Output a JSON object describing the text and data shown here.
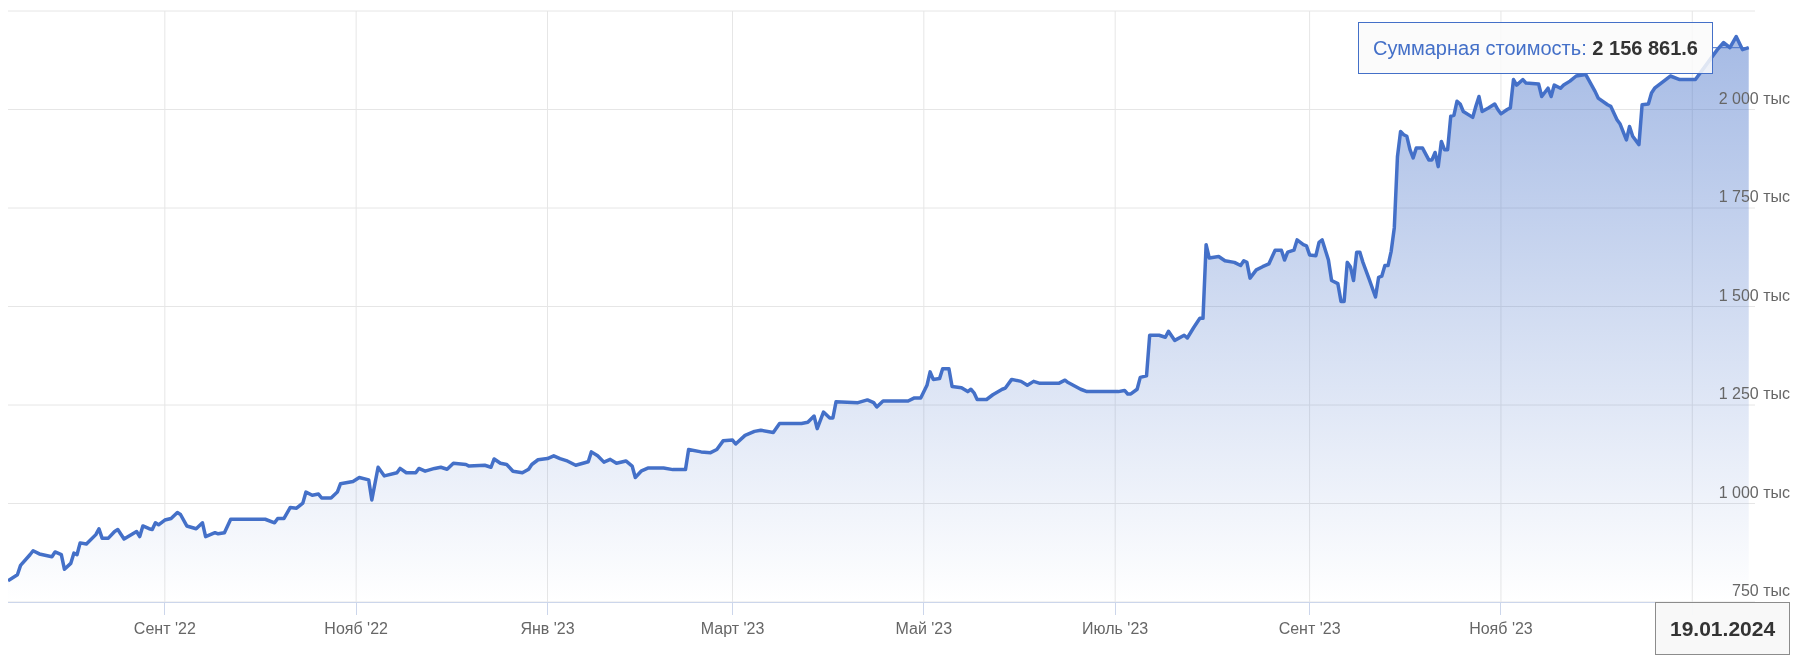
{
  "chart_data": {
    "type": "area",
    "x": [
      "2022-07-13",
      "2022-07-16",
      "2022-07-17",
      "2022-07-20",
      "2022-07-21",
      "2022-07-23",
      "2022-07-27",
      "2022-07-28",
      "2022-07-30",
      "2022-07-31",
      "2022-08-02",
      "2022-08-03",
      "2022-08-04",
      "2022-08-05",
      "2022-08-07",
      "2022-08-10",
      "2022-08-11",
      "2022-08-12",
      "2022-08-14",
      "2022-08-16",
      "2022-08-17",
      "2022-08-19",
      "2022-08-23",
      "2022-08-24",
      "2022-08-25",
      "2022-08-27",
      "2022-08-28",
      "2022-08-29",
      "2022-08-30",
      "2022-09-01",
      "2022-09-03",
      "2022-09-05",
      "2022-09-06",
      "2022-09-08",
      "2022-09-11",
      "2022-09-13",
      "2022-09-14",
      "2022-09-17",
      "2022-09-18",
      "2022-09-20",
      "2022-09-22",
      "2022-10-03",
      "2022-10-06",
      "2022-10-07",
      "2022-10-09",
      "2022-10-11",
      "2022-10-13",
      "2022-10-15",
      "2022-10-16",
      "2022-10-18",
      "2022-10-20",
      "2022-10-21",
      "2022-10-24",
      "2022-10-26",
      "2022-10-27",
      "2022-10-31",
      "2022-11-02",
      "2022-11-05",
      "2022-11-06",
      "2022-11-08",
      "2022-11-10",
      "2022-11-14",
      "2022-11-15",
      "2022-11-17",
      "2022-11-20",
      "2022-11-21",
      "2022-11-23",
      "2022-11-26",
      "2022-11-28",
      "2022-11-30",
      "2022-12-02",
      "2022-12-06",
      "2022-12-07",
      "2022-12-12",
      "2022-12-14",
      "2022-12-15",
      "2022-12-17",
      "2022-12-19",
      "2022-12-21",
      "2022-12-24",
      "2022-12-26",
      "2022-12-27",
      "2022-12-29",
      "2023-01-01",
      "2023-01-03",
      "2023-01-05",
      "2023-01-07",
      "2023-01-10",
      "2023-01-14",
      "2023-01-15",
      "2023-01-17",
      "2023-01-19",
      "2023-01-21",
      "2023-01-23",
      "2023-01-26",
      "2023-01-28",
      "2023-01-29",
      "2023-01-31",
      "2023-02-02",
      "2023-02-07",
      "2023-02-10",
      "2023-02-14",
      "2023-02-15",
      "2023-02-19",
      "2023-02-22",
      "2023-02-24",
      "2023-02-26",
      "2023-03-01",
      "2023-03-02",
      "2023-03-05",
      "2023-03-08",
      "2023-03-10",
      "2023-03-14",
      "2023-03-16",
      "2023-03-23",
      "2023-03-25",
      "2023-03-27",
      "2023-03-28",
      "2023-03-30",
      "2023-04-01",
      "2023-04-02",
      "2023-04-03",
      "2023-04-10",
      "2023-04-13",
      "2023-04-15",
      "2023-04-16",
      "2023-04-18",
      "2023-04-26",
      "2023-04-28",
      "2023-04-30",
      "2023-05-02",
      "2023-05-03",
      "2023-05-04",
      "2023-05-06",
      "2023-05-07",
      "2023-05-09",
      "2023-05-10",
      "2023-05-13",
      "2023-05-15",
      "2023-05-16",
      "2023-05-17",
      "2023-05-18",
      "2023-05-21",
      "2023-05-23",
      "2023-05-26",
      "2023-05-27",
      "2023-05-29",
      "2023-06-01",
      "2023-06-03",
      "2023-06-05",
      "2023-06-07",
      "2023-06-13",
      "2023-06-15",
      "2023-06-16",
      "2023-06-20",
      "2023-06-22",
      "2023-07-02",
      "2023-07-04",
      "2023-07-05",
      "2023-07-06",
      "2023-07-08",
      "2023-07-09",
      "2023-07-11",
      "2023-07-12",
      "2023-07-15",
      "2023-07-17",
      "2023-07-18",
      "2023-07-20",
      "2023-07-23",
      "2023-07-24",
      "2023-07-26",
      "2023-07-28",
      "2023-07-29",
      "2023-07-30",
      "2023-07-31",
      "2023-08-03",
      "2023-08-05",
      "2023-08-08",
      "2023-08-10",
      "2023-08-11",
      "2023-08-12",
      "2023-08-13",
      "2023-08-15",
      "2023-08-17",
      "2023-08-19",
      "2023-08-21",
      "2023-08-23",
      "2023-08-24",
      "2023-08-25",
      "2023-08-27",
      "2023-08-28",
      "2023-08-30",
      "2023-08-31",
      "2023-09-01",
      "2023-09-03",
      "2023-09-04",
      "2023-09-05",
      "2023-09-07",
      "2023-09-08",
      "2023-09-10",
      "2023-09-11",
      "2023-09-12",
      "2023-09-13",
      "2023-09-14",
      "2023-09-15",
      "2023-09-16",
      "2023-09-17",
      "2023-09-18",
      "2023-09-20",
      "2023-09-22",
      "2023-09-23",
      "2023-09-24",
      "2023-09-25",
      "2023-09-26",
      "2023-09-27",
      "2023-09-28",
      "2023-09-29",
      "2023-09-30",
      "2023-10-01",
      "2023-10-02",
      "2023-10-03",
      "2023-10-04",
      "2023-10-05",
      "2023-10-07",
      "2023-10-09",
      "2023-10-10",
      "2023-10-11",
      "2023-10-12",
      "2023-10-13",
      "2023-10-14",
      "2023-10-15",
      "2023-10-16",
      "2023-10-17",
      "2023-10-18",
      "2023-10-19",
      "2023-10-20",
      "2023-10-23",
      "2023-10-24",
      "2023-10-25",
      "2023-10-26",
      "2023-10-28",
      "2023-10-30",
      "2023-10-31",
      "2023-11-01",
      "2023-11-03",
      "2023-11-04",
      "2023-11-05",
      "2023-11-06",
      "2023-11-08",
      "2023-11-09",
      "2023-11-13",
      "2023-11-14",
      "2023-11-16",
      "2023-11-17",
      "2023-11-18",
      "2023-11-20",
      "2023-11-21",
      "2023-11-23",
      "2023-11-25",
      "2023-11-28",
      "2023-12-01",
      "2023-12-02",
      "2023-12-05",
      "2023-12-06",
      "2023-12-08",
      "2023-12-09",
      "2023-12-11",
      "2023-12-12",
      "2023-12-13",
      "2023-12-15",
      "2023-12-16",
      "2023-12-18",
      "2023-12-19",
      "2023-12-20",
      "2023-12-21",
      "2023-12-23",
      "2023-12-24",
      "2023-12-25",
      "2023-12-28",
      "2024-01-02",
      "2024-01-03",
      "2024-01-05",
      "2024-01-07",
      "2024-01-09",
      "2024-01-11",
      "2024-01-13",
      "2024-01-15",
      "2024-01-17",
      "2024-01-19"
    ],
    "series": [
      {
        "color": "#4470c8",
        "values": [
          804,
          819,
          843,
          870,
          880,
          872,
          865,
          877,
          870,
          833,
          848,
          874,
          870,
          900,
          897,
          921,
          936,
          912,
          912,
          929,
          934,
          910,
          929,
          916,
          943,
          936,
          934,
          951,
          946,
          958,
          962,
          977,
          972,
          943,
          936,
          951,
          916,
          926,
          923,
          926,
          960,
          960,
          951,
          962,
          962,
          990,
          988,
          1001,
          1029,
          1021,
          1024,
          1014,
          1014,
          1029,
          1050,
          1056,
          1066,
          1060,
          1009,
          1092,
          1070,
          1078,
          1089,
          1078,
          1078,
          1089,
          1082,
          1089,
          1092,
          1087,
          1102,
          1099,
          1095,
          1097,
          1092,
          1113,
          1102,
          1099,
          1082,
          1078,
          1087,
          1099,
          1111,
          1114,
          1121,
          1114,
          1109,
          1097,
          1106,
          1131,
          1121,
          1105,
          1112,
          1102,
          1108,
          1095,
          1066,
          1083,
          1090,
          1090,
          1086,
          1086,
          1137,
          1131,
          1129,
          1137,
          1159,
          1161,
          1151,
          1173,
          1183,
          1186,
          1180,
          1203,
          1203,
          1206,
          1222,
          1190,
          1232,
          1217,
          1217,
          1258,
          1256,
          1263,
          1256,
          1245,
          1260,
          1260,
          1268,
          1268,
          1300,
          1334,
          1315,
          1317,
          1342,
          1342,
          1297,
          1294,
          1284,
          1290,
          1281,
          1264,
          1264,
          1276,
          1290,
          1293,
          1315,
          1310,
          1300,
          1310,
          1305,
          1305,
          1313,
          1307,
          1290,
          1284,
          1284,
          1287,
          1278,
          1278,
          1290,
          1320,
          1324,
          1427,
          1427,
          1422,
          1437,
          1414,
          1427,
          1420,
          1446,
          1470,
          1470,
          1657,
          1623,
          1627,
          1616,
          1612,
          1604,
          1616,
          1612,
          1572,
          1593,
          1601,
          1608,
          1643,
          1643,
          1618,
          1638,
          1643,
          1669,
          1657,
          1654,
          1631,
          1629,
          1663,
          1669,
          1618,
          1566,
          1558,
          1513,
          1513,
          1612,
          1601,
          1566,
          1638,
          1638,
          1612,
          1569,
          1524,
          1574,
          1577,
          1604,
          1604,
          1640,
          1700,
          1880,
          1944,
          1936,
          1932,
          1898,
          1877,
          1902,
          1902,
          1872,
          1872,
          1891,
          1855,
          1919,
          1898,
          1898,
          1983,
          1985,
          2021,
          2014,
          1995,
          1980,
          2008,
          2033,
          1995,
          2004,
          2014,
          2000,
          1989,
          2000,
          2004,
          2076,
          2062,
          2076,
          2067,
          2065,
          2033,
          2054,
          2033,
          2062,
          2054,
          2062,
          2072,
          2085,
          2089,
          2046,
          2029,
          2012,
          2008,
          1974,
          1963,
          1923,
          1957,
          1932,
          1911,
          2012,
          2014,
          2042,
          2054,
          null,
          null,
          null,
          2085,
          2076,
          2076,
          null,
          null,
          null,
          2152,
          2170,
          2157,
          2185,
          2152,
          2156.8616
        ]
      }
    ],
    "xlim": [
      "2022-07-13",
      "2024-01-21"
    ],
    "xticks": [
      {
        "value": "2022-09-01",
        "label": "Сент '22"
      },
      {
        "value": "2022-11-01",
        "label": "Нояб '22"
      },
      {
        "value": "2023-01-01",
        "label": "Янв '23"
      },
      {
        "value": "2023-03-01",
        "label": "Март '23"
      },
      {
        "value": "2023-05-01",
        "label": "Май '23"
      },
      {
        "value": "2023-07-01",
        "label": "Июль '23"
      },
      {
        "value": "2023-09-01",
        "label": "Сент '23"
      },
      {
        "value": "2023-11-01",
        "label": "Нояб '23"
      },
      {
        "value": "2024-01-01",
        "label": null
      }
    ],
    "ylim": [
      750,
      2250
    ],
    "yticks": [
      {
        "value": 750,
        "label": "750 тыс"
      },
      {
        "value": 1000,
        "label": "1 000 тыс"
      },
      {
        "value": 1250,
        "label": "1 250 тыс"
      },
      {
        "value": 1500,
        "label": "1 500 тыс"
      },
      {
        "value": 1750,
        "label": "1 750 тыс"
      },
      {
        "value": 2000,
        "label": "2 000 тыс"
      },
      {
        "value": 2250,
        "label": null
      }
    ],
    "grid": true,
    "annotations": [
      {
        "text": "Суммарная стоимость: 2 156 861.6",
        "x": "2024-01-19",
        "y": 2156.8616
      },
      "19.01.2024"
    ]
  }
}
